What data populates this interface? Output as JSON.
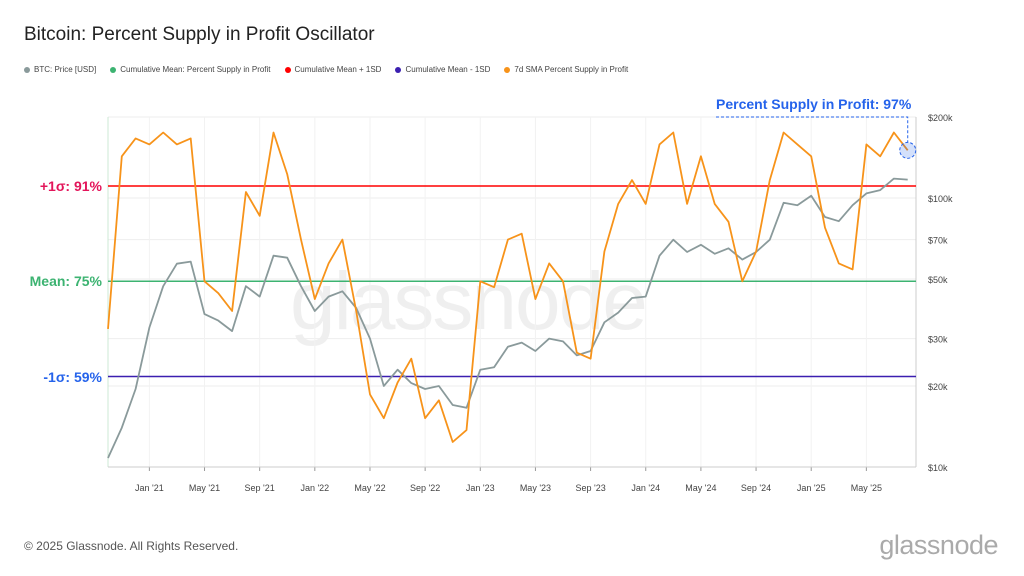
{
  "title": "Bitcoin: Percent Supply in Profit Oscillator",
  "footer": "© 2025 Glassnode. All Rights Reserved.",
  "logo": "glassnode",
  "watermark": "glassnode",
  "colors": {
    "price": "#8a9a9b",
    "mean": "#3cb371",
    "plus1": "#ff0000",
    "minus1": "#3b1fb0",
    "sma": "#f7931a",
    "annot": "#2563eb",
    "plusLabel": "#e3155a"
  },
  "chart_data": {
    "type": "line",
    "title": "Bitcoin: Percent Supply in Profit Oscillator",
    "legend": [
      "BTC: Price [USD]",
      "Cumulative Mean: Percent Supply in Profit",
      "Cumulative Mean + 1SD",
      "Cumulative Mean - 1SD",
      "7d SMA Percent Supply in Profit"
    ],
    "x_ticks": [
      "Jan '21",
      "May '21",
      "Sep '21",
      "Jan '22",
      "May '22",
      "Sep '22",
      "Jan '23",
      "May '23",
      "Sep '23",
      "Jan '24",
      "May '24",
      "Sep '24",
      "Jan '25",
      "May '25"
    ],
    "x_tick_dates": [
      "2021-01",
      "2021-05",
      "2021-09",
      "2022-01",
      "2022-05",
      "2022-09",
      "2023-01",
      "2023-05",
      "2023-09",
      "2024-01",
      "2024-05",
      "2024-09",
      "2025-01",
      "2025-05"
    ],
    "xlim": [
      "2020-10",
      "2025-08"
    ],
    "y_right_ticks": [
      "$10k",
      "$20k",
      "$30k",
      "$50k",
      "$70k",
      "$100k",
      "$200k"
    ],
    "y_right_values": [
      10000,
      20000,
      30000,
      50000,
      70000,
      100000,
      200000
    ],
    "y_right_range": [
      10000,
      200000
    ],
    "y_left_range": [
      43.8,
      102.6
    ],
    "levels": [
      {
        "label": "+1σ: 91%",
        "value": 91
      },
      {
        "label": "Mean: 75%",
        "value": 75
      },
      {
        "label": "-1σ: 59%",
        "value": 59
      }
    ],
    "annotation": "Percent Supply in Profit: 97%",
    "dates": [
      "2020-10",
      "2020-11",
      "2020-12",
      "2021-01",
      "2021-02",
      "2021-03",
      "2021-04",
      "2021-05",
      "2021-06",
      "2021-07",
      "2021-08",
      "2021-09",
      "2021-10",
      "2021-11",
      "2021-12",
      "2022-01",
      "2022-02",
      "2022-03",
      "2022-04",
      "2022-05",
      "2022-06",
      "2022-07",
      "2022-08",
      "2022-09",
      "2022-10",
      "2022-11",
      "2022-12",
      "2023-01",
      "2023-02",
      "2023-03",
      "2023-04",
      "2023-05",
      "2023-06",
      "2023-07",
      "2023-08",
      "2023-09",
      "2023-10",
      "2023-11",
      "2023-12",
      "2024-01",
      "2024-02",
      "2024-03",
      "2024-04",
      "2024-05",
      "2024-06",
      "2024-07",
      "2024-08",
      "2024-09",
      "2024-10",
      "2024-11",
      "2024-12",
      "2025-01",
      "2025-02",
      "2025-03",
      "2025-04",
      "2025-05",
      "2025-06",
      "2025-07",
      "2025-08"
    ],
    "series": [
      {
        "name": "BTC: Price [USD]",
        "axis": "right",
        "values": [
          10800,
          14000,
          19500,
          33000,
          47000,
          57000,
          58000,
          37000,
          35000,
          32000,
          47000,
          43000,
          61000,
          60000,
          47000,
          38000,
          43000,
          45000,
          39000,
          30000,
          20000,
          23000,
          20500,
          19500,
          20000,
          17000,
          16600,
          23000,
          23500,
          28000,
          29000,
          27000,
          30000,
          29300,
          26000,
          27000,
          34500,
          37500,
          42500,
          43000,
          61000,
          70000,
          63000,
          67000,
          62000,
          65000,
          59000,
          63000,
          70000,
          96000,
          94000,
          102000,
          85000,
          82000,
          94000,
          104000,
          107000,
          118000,
          117000
        ]
      },
      {
        "name": "7d SMA Percent Supply in Profit",
        "axis": "left",
        "values": [
          67,
          96,
          99,
          98,
          100,
          98,
          99,
          75,
          73,
          70,
          90,
          86,
          100,
          93,
          82,
          72,
          78,
          82,
          70,
          56,
          52,
          58,
          62,
          52,
          55,
          48,
          50,
          75,
          74,
          82,
          83,
          72,
          78,
          75,
          63,
          62,
          80,
          88,
          92,
          88,
          98,
          100,
          88,
          96,
          88,
          85,
          75,
          80,
          92,
          100,
          98,
          96,
          84,
          78,
          77,
          98,
          96,
          100,
          97
        ]
      }
    ]
  }
}
